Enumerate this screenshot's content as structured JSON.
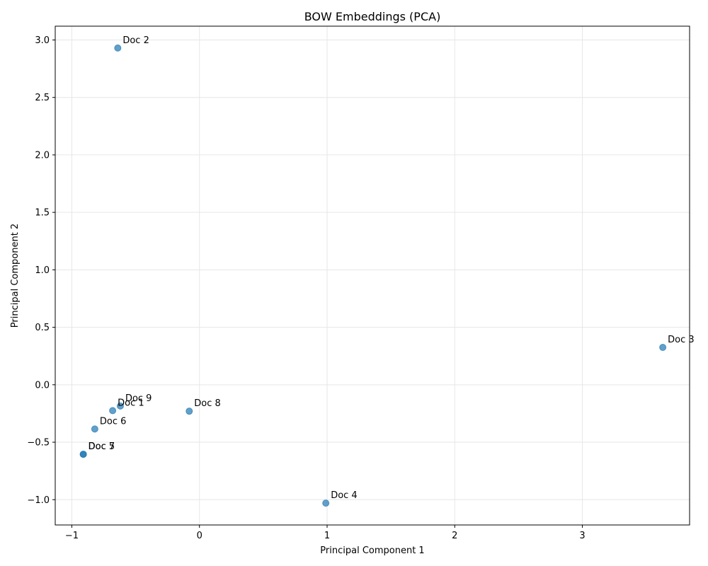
{
  "chart_data": {
    "type": "scatter",
    "title": "BOW Embeddings (PCA)",
    "xlabel": "Principal Component 1",
    "ylabel": "Principal Component 2",
    "xlim": [
      -1.13,
      3.84
    ],
    "ylim": [
      -1.22,
      3.12
    ],
    "xticks": [
      -1,
      0,
      1,
      2,
      3
    ],
    "xtick_labels": [
      "−1",
      "0",
      "1",
      "2",
      "3"
    ],
    "yticks": [
      -1.0,
      -0.5,
      0.0,
      0.5,
      1.0,
      1.5,
      2.0,
      2.5,
      3.0
    ],
    "ytick_labels": [
      "−1.0",
      "−0.5",
      "0.0",
      "0.5",
      "1.0",
      "1.5",
      "2.0",
      "2.5",
      "3.0"
    ],
    "grid": true,
    "marker_color": "#1f77b4",
    "marker_alpha": 0.7,
    "points": [
      {
        "label": "Doc 1",
        "x": -0.68,
        "y": -0.225
      },
      {
        "label": "Doc 2",
        "x": -0.64,
        "y": 2.93
      },
      {
        "label": "Doc 3",
        "x": 3.63,
        "y": 0.325
      },
      {
        "label": "Doc 4",
        "x": 0.99,
        "y": -1.03
      },
      {
        "label": "Doc 5",
        "x": -0.91,
        "y": -0.605
      },
      {
        "label": "Doc 6",
        "x": -0.82,
        "y": -0.385
      },
      {
        "label": "Doc 7",
        "x": -0.91,
        "y": -0.605
      },
      {
        "label": "Doc 8",
        "x": -0.08,
        "y": -0.23
      },
      {
        "label": "Doc 9",
        "x": -0.62,
        "y": -0.185
      }
    ]
  }
}
